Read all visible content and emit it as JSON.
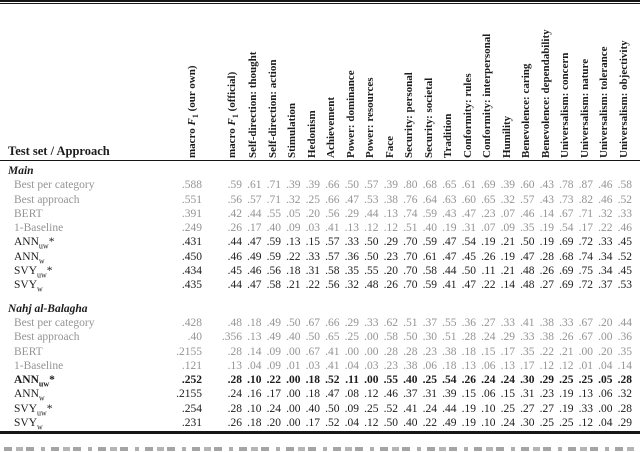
{
  "colors": {
    "rule": "#161616",
    "text_black": "#1c1c1c",
    "text_gray": "#949494"
  },
  "table": {
    "corner_label": "Test set / Approach",
    "column_headers": [
      {
        "parts": [
          {
            "t": "macro "
          },
          {
            "t": "F",
            "style": "italic"
          },
          {
            "t": "1",
            "style": "sub"
          },
          {
            "t": " (our own)"
          }
        ]
      },
      {
        "parts": [
          {
            "t": "macro "
          },
          {
            "t": "F",
            "style": "italic"
          },
          {
            "t": "1",
            "style": "sub"
          },
          {
            "t": " (official)"
          }
        ]
      },
      {
        "parts": [
          {
            "t": "Self-direction: thought"
          }
        ]
      },
      {
        "parts": [
          {
            "t": "Self-direction: action"
          }
        ]
      },
      {
        "parts": [
          {
            "t": "Stimulation"
          }
        ]
      },
      {
        "parts": [
          {
            "t": "Hedonism"
          }
        ]
      },
      {
        "parts": [
          {
            "t": "Achievement"
          }
        ]
      },
      {
        "parts": [
          {
            "t": "Power: dominance"
          }
        ]
      },
      {
        "parts": [
          {
            "t": "Power: resources"
          }
        ]
      },
      {
        "parts": [
          {
            "t": "Face"
          }
        ]
      },
      {
        "parts": [
          {
            "t": "Security: personal"
          }
        ]
      },
      {
        "parts": [
          {
            "t": "Security: societal"
          }
        ]
      },
      {
        "parts": [
          {
            "t": "Tradition"
          }
        ]
      },
      {
        "parts": [
          {
            "t": "Conformity: rules"
          }
        ]
      },
      {
        "parts": [
          {
            "t": "Conformity: interpersonal"
          }
        ]
      },
      {
        "parts": [
          {
            "t": "Humility"
          }
        ]
      },
      {
        "parts": [
          {
            "t": "Benevolence: caring"
          }
        ]
      },
      {
        "parts": [
          {
            "t": "Benevolence: dependability"
          }
        ]
      },
      {
        "parts": [
          {
            "t": "Universalism: concern"
          }
        ]
      },
      {
        "parts": [
          {
            "t": "Universalism: nature"
          }
        ]
      },
      {
        "parts": [
          {
            "t": "Universalism: tolerance"
          }
        ]
      },
      {
        "parts": [
          {
            "t": "Universalism: objectivity"
          }
        ]
      }
    ],
    "sections": [
      {
        "title": "Main",
        "rows": [
          {
            "label_parts": [
              {
                "t": "Best per category"
              }
            ],
            "tone": "gray",
            "bold": false,
            "values": [
              ".588",
              ".59",
              ".61",
              ".71",
              ".39",
              ".39",
              ".66",
              ".50",
              ".57",
              ".39",
              ".80",
              ".68",
              ".65",
              ".61",
              ".69",
              ".39",
              ".60",
              ".43",
              ".78",
              ".87",
              ".46",
              ".58"
            ]
          },
          {
            "label_parts": [
              {
                "t": "Best approach"
              }
            ],
            "tone": "gray",
            "bold": false,
            "values": [
              ".551",
              ".56",
              ".57",
              ".71",
              ".32",
              ".25",
              ".66",
              ".47",
              ".53",
              ".38",
              ".76",
              ".64",
              ".63",
              ".60",
              ".65",
              ".32",
              ".57",
              ".43",
              ".73",
              ".82",
              ".46",
              ".52"
            ]
          },
          {
            "label_parts": [
              {
                "t": "BERT"
              }
            ],
            "tone": "gray",
            "bold": false,
            "values": [
              ".391",
              ".42",
              ".44",
              ".55",
              ".05",
              ".20",
              ".56",
              ".29",
              ".44",
              ".13",
              ".74",
              ".59",
              ".43",
              ".47",
              ".23",
              ".07",
              ".46",
              ".14",
              ".67",
              ".71",
              ".32",
              ".33"
            ]
          },
          {
            "label_parts": [
              {
                "t": "1-Baseline"
              }
            ],
            "tone": "gray",
            "bold": false,
            "values": [
              ".249",
              ".26",
              ".17",
              ".40",
              ".09",
              ".03",
              ".41",
              ".13",
              ".12",
              ".12",
              ".51",
              ".40",
              ".19",
              ".31",
              ".07",
              ".09",
              ".35",
              ".19",
              ".54",
              ".17",
              ".22",
              ".46"
            ]
          },
          {
            "label_parts": [
              {
                "t": "ANN"
              },
              {
                "t": "uw",
                "style": "sub"
              },
              {
                "t": "*"
              }
            ],
            "tone": "black",
            "bold": false,
            "values": [
              ".431",
              ".44",
              ".47",
              ".59",
              ".13",
              ".15",
              ".57",
              ".33",
              ".50",
              ".29",
              ".70",
              ".59",
              ".47",
              ".54",
              ".19",
              ".21",
              ".50",
              ".19",
              ".69",
              ".72",
              ".33",
              ".45"
            ]
          },
          {
            "label_parts": [
              {
                "t": "ANN"
              },
              {
                "t": "w",
                "style": "sub"
              }
            ],
            "tone": "black",
            "bold": false,
            "values": [
              ".450",
              ".46",
              ".49",
              ".59",
              ".22",
              ".33",
              ".57",
              ".36",
              ".50",
              ".23",
              ".70",
              ".61",
              ".47",
              ".45",
              ".26",
              ".19",
              ".47",
              ".28",
              ".68",
              ".74",
              ".34",
              ".52"
            ]
          },
          {
            "label_parts": [
              {
                "t": "SVY"
              },
              {
                "t": "uw",
                "style": "sub"
              },
              {
                "t": "*"
              }
            ],
            "tone": "black",
            "bold": false,
            "values": [
              ".434",
              ".45",
              ".46",
              ".56",
              ".18",
              ".31",
              ".58",
              ".35",
              ".55",
              ".20",
              ".70",
              ".58",
              ".44",
              ".50",
              ".11",
              ".21",
              ".48",
              ".26",
              ".69",
              ".75",
              ".34",
              ".45"
            ]
          },
          {
            "label_parts": [
              {
                "t": "SVY"
              },
              {
                "t": "w",
                "style": "sub"
              }
            ],
            "tone": "black",
            "bold": false,
            "values": [
              ".435",
              ".44",
              ".47",
              ".58",
              ".21",
              ".22",
              ".56",
              ".32",
              ".48",
              ".26",
              ".70",
              ".59",
              ".41",
              ".47",
              ".22",
              ".14",
              ".48",
              ".27",
              ".69",
              ".72",
              ".37",
              ".53"
            ]
          }
        ]
      },
      {
        "title": "Nahj al-Balagha",
        "rows": [
          {
            "label_parts": [
              {
                "t": "Best per category"
              }
            ],
            "tone": "gray",
            "bold": false,
            "values": [
              ".428",
              ".48",
              ".18",
              ".49",
              ".50",
              ".67",
              ".66",
              ".29",
              ".33",
              ".62",
              ".51",
              ".37",
              ".55",
              ".36",
              ".27",
              ".33",
              ".41",
              ".38",
              ".33",
              ".67",
              ".20",
              ".44"
            ]
          },
          {
            "label_parts": [
              {
                "t": "Best approach"
              }
            ],
            "tone": "gray",
            "bold": false,
            "values": [
              ".40",
              ".356",
              ".13",
              ".49",
              ".40",
              ".50",
              ".65",
              ".25",
              ".00",
              ".58",
              ".50",
              ".30",
              ".51",
              ".28",
              ".24",
              ".29",
              ".33",
              ".38",
              ".26",
              ".67",
              ".00",
              ".36"
            ]
          },
          {
            "label_parts": [
              {
                "t": "BERT"
              }
            ],
            "tone": "gray",
            "bold": false,
            "values": [
              ".2155",
              ".28",
              ".14",
              ".09",
              ".00",
              ".67",
              ".41",
              ".00",
              ".00",
              ".28",
              ".28",
              ".23",
              ".38",
              ".18",
              ".15",
              ".17",
              ".35",
              ".22",
              ".21",
              ".00",
              ".20",
              ".35"
            ]
          },
          {
            "label_parts": [
              {
                "t": "1-Baseline"
              }
            ],
            "tone": "gray",
            "bold": false,
            "values": [
              ".121",
              ".13",
              ".04",
              ".09",
              ".01",
              ".03",
              ".41",
              ".04",
              ".03",
              ".23",
              ".38",
              ".06",
              ".18",
              ".13",
              ".06",
              ".13",
              ".17",
              ".12",
              ".12",
              ".01",
              ".04",
              ".14"
            ]
          },
          {
            "label_parts": [
              {
                "t": "ANN"
              },
              {
                "t": "uw",
                "style": "sub"
              },
              {
                "t": "*"
              }
            ],
            "tone": "black",
            "bold": true,
            "values": [
              ".252",
              ".28",
              ".10",
              ".22",
              ".00",
              ".18",
              ".52",
              ".11",
              ".00",
              ".55",
              ".40",
              ".25",
              ".54",
              ".26",
              ".24",
              ".24",
              ".30",
              ".29",
              ".25",
              ".25",
              ".05",
              ".28"
            ]
          },
          {
            "label_parts": [
              {
                "t": "ANN"
              },
              {
                "t": "w",
                "style": "sub"
              }
            ],
            "tone": "black",
            "bold": false,
            "values": [
              ".2155",
              ".24",
              ".16",
              ".17",
              ".00",
              ".18",
              ".47",
              ".08",
              ".12",
              ".46",
              ".37",
              ".31",
              ".39",
              ".15",
              ".06",
              ".15",
              ".31",
              ".23",
              ".19",
              ".13",
              ".06",
              ".32"
            ]
          },
          {
            "label_parts": [
              {
                "t": "SVY"
              },
              {
                "t": "uw",
                "style": "sub"
              },
              {
                "t": "*"
              }
            ],
            "tone": "black",
            "bold": false,
            "values": [
              ".254",
              ".28",
              ".10",
              ".24",
              ".00",
              ".40",
              ".50",
              ".09",
              ".25",
              ".52",
              ".41",
              ".24",
              ".44",
              ".19",
              ".10",
              ".25",
              ".27",
              ".27",
              ".19",
              ".33",
              ".00",
              ".28"
            ]
          },
          {
            "label_parts": [
              {
                "t": "SVY"
              },
              {
                "t": "w",
                "style": "sub"
              }
            ],
            "tone": "black",
            "bold": false,
            "values": [
              ".231",
              ".26",
              ".18",
              ".20",
              ".00",
              ".17",
              ".52",
              ".04",
              ".12",
              ".50",
              ".40",
              ".22",
              ".49",
              ".19",
              ".10",
              ".24",
              ".30",
              ".25",
              ".25",
              ".12",
              ".04",
              ".29"
            ]
          }
        ]
      }
    ]
  }
}
